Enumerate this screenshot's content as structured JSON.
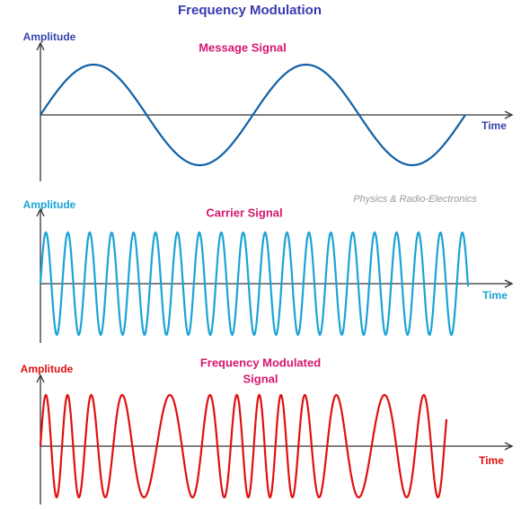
{
  "title": "Frequency Modulation",
  "watermark": "Physics & Radio-Electronics",
  "panels": [
    {
      "y_label": "Amplitude",
      "title": [
        "Message Signal"
      ],
      "x_label": "Time"
    },
    {
      "y_label": "Amplitude",
      "title": [
        "Carrier Signal"
      ],
      "x_label": "Time"
    },
    {
      "y_label": "Amplitude",
      "title": [
        "Frequency Modulated",
        "Signal"
      ],
      "x_label": "Time"
    }
  ]
}
